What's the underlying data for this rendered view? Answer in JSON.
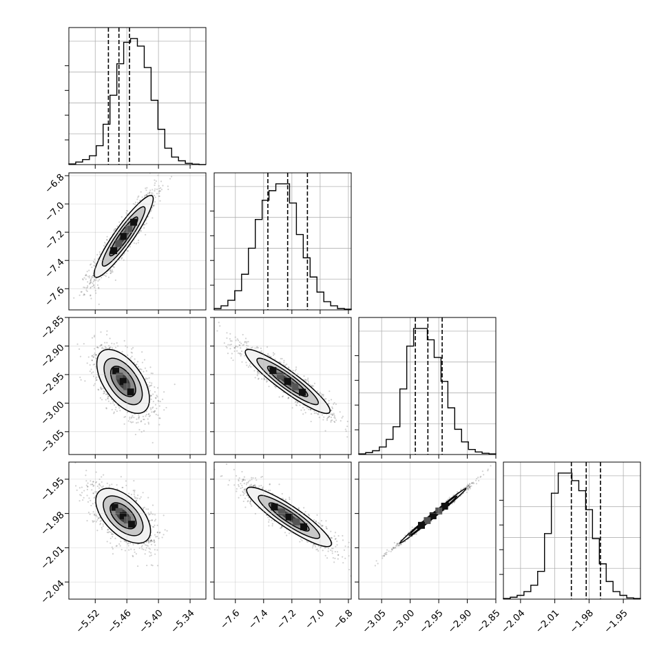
{
  "chart_data": {
    "type": "corner",
    "grid": true,
    "parameters": [
      {
        "range": [
          -5.57,
          -5.31
        ],
        "ticks": [
          -5.52,
          -5.46,
          -5.4,
          -5.34
        ],
        "tick_labels": [
          "−5.52",
          "−5.46",
          "−5.40",
          "−5.34"
        ],
        "quantiles": [
          -5.495,
          -5.475,
          -5.455
        ],
        "histogram": [
          0.5,
          2,
          4,
          7,
          15,
          32,
          55,
          80,
          97,
          100,
          94,
          77,
          51,
          28,
          13,
          6,
          3,
          1,
          0.4,
          0
        ]
      },
      {
        "range": [
          -7.75,
          -6.78
        ],
        "ticks": [
          -7.6,
          -7.4,
          -7.2,
          -7.0,
          -6.8
        ],
        "tick_labels": [
          "−7.6",
          "−7.4",
          "−7.2",
          "−7.0",
          "−6.8"
        ],
        "quantiles": [
          -7.37,
          -7.23,
          -7.09
        ],
        "histogram": [
          1,
          3,
          7,
          14,
          26,
          45,
          66,
          80,
          87,
          92,
          92,
          78,
          55,
          38,
          24,
          13,
          6,
          3,
          1,
          0.5
        ]
      },
      {
        "range": [
          -3.09,
          -2.85
        ],
        "ticks": [
          -3.05,
          -3.0,
          -2.95,
          -2.9,
          -2.85
        ],
        "tick_labels": [
          "−3.05",
          "−3.00",
          "−2.95",
          "−2.90",
          "−2.85"
        ],
        "quantiles": [
          -2.991,
          -2.969,
          -2.944
        ],
        "histogram": [
          0.5,
          1.5,
          3,
          6,
          12,
          22,
          52,
          86,
          100,
          100,
          91,
          77,
          58,
          37,
          20,
          10,
          4,
          2,
          1,
          0.5
        ]
      },
      {
        "range": [
          -2.055,
          -1.935
        ],
        "ticks": [
          -2.04,
          -2.01,
          -1.98,
          -1.95
        ],
        "tick_labels": [
          "−2.04",
          "−2.01",
          "−1.98",
          "−1.95"
        ],
        "quantiles": [
          -1.9955,
          -1.9825,
          -1.97
        ],
        "histogram": [
          0.5,
          1.5,
          3,
          6,
          11,
          22,
          52,
          84,
          100,
          100,
          94,
          86,
          71,
          48,
          28,
          14,
          6,
          3,
          1,
          0.5
        ]
      }
    ],
    "pairs": [
      {
        "x": 0,
        "y": 1,
        "mean": [
          -5.466,
          -7.23
        ],
        "sd": [
          0.028,
          0.145
        ],
        "rho": 0.92
      },
      {
        "x": 0,
        "y": 2,
        "mean": [
          -5.467,
          -2.962
        ],
        "sd": [
          0.025,
          0.028
        ],
        "rho": -0.55
      },
      {
        "x": 1,
        "y": 2,
        "mean": [
          -7.23,
          -2.962
        ],
        "sd": [
          0.15,
          0.028
        ],
        "rho": -0.92
      },
      {
        "x": 0,
        "y": 3,
        "mean": [
          -5.467,
          -1.982
        ],
        "sd": [
          0.026,
          0.012
        ],
        "rho": -0.55
      },
      {
        "x": 1,
        "y": 3,
        "mean": [
          -7.22,
          -1.983
        ],
        "sd": [
          0.15,
          0.013
        ],
        "rho": -0.9
      },
      {
        "x": 2,
        "y": 3,
        "mean": [
          -2.96,
          -1.982
        ],
        "sd": [
          0.029,
          0.012
        ],
        "rho": 0.995
      }
    ]
  }
}
